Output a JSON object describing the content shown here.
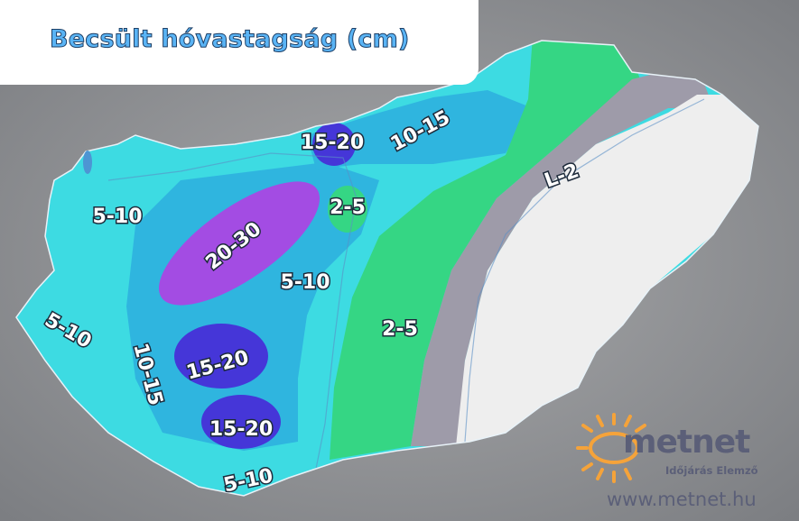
{
  "title": "Becsült hóvastagság (cm)",
  "colors": {
    "2-5 cm": "#35d684",
    "5-10 cm": "#3ddbe2",
    "10-15 cm": "#2fb5df",
    "15-20 cm": "#4536d8",
    "20-30 cm": "#a34ce3",
    "L-2 cm": "#9e9ba9",
    "no snow": "#eeeeee"
  },
  "labels": [
    {
      "text": "15-20"
    },
    {
      "text": "10-15"
    },
    {
      "text": "L-2"
    },
    {
      "text": "2-5"
    },
    {
      "text": "5-10"
    },
    {
      "text": "20-30"
    },
    {
      "text": "5-10"
    },
    {
      "text": "5-10"
    },
    {
      "text": "2-5"
    },
    {
      "text": "10-15"
    },
    {
      "text": "15-20"
    },
    {
      "text": "15-20"
    },
    {
      "text": "5-10"
    }
  ],
  "logo": {
    "brand": "metnet",
    "tagline": "Időjárás Elemző",
    "url": "www.metnet.hu"
  }
}
